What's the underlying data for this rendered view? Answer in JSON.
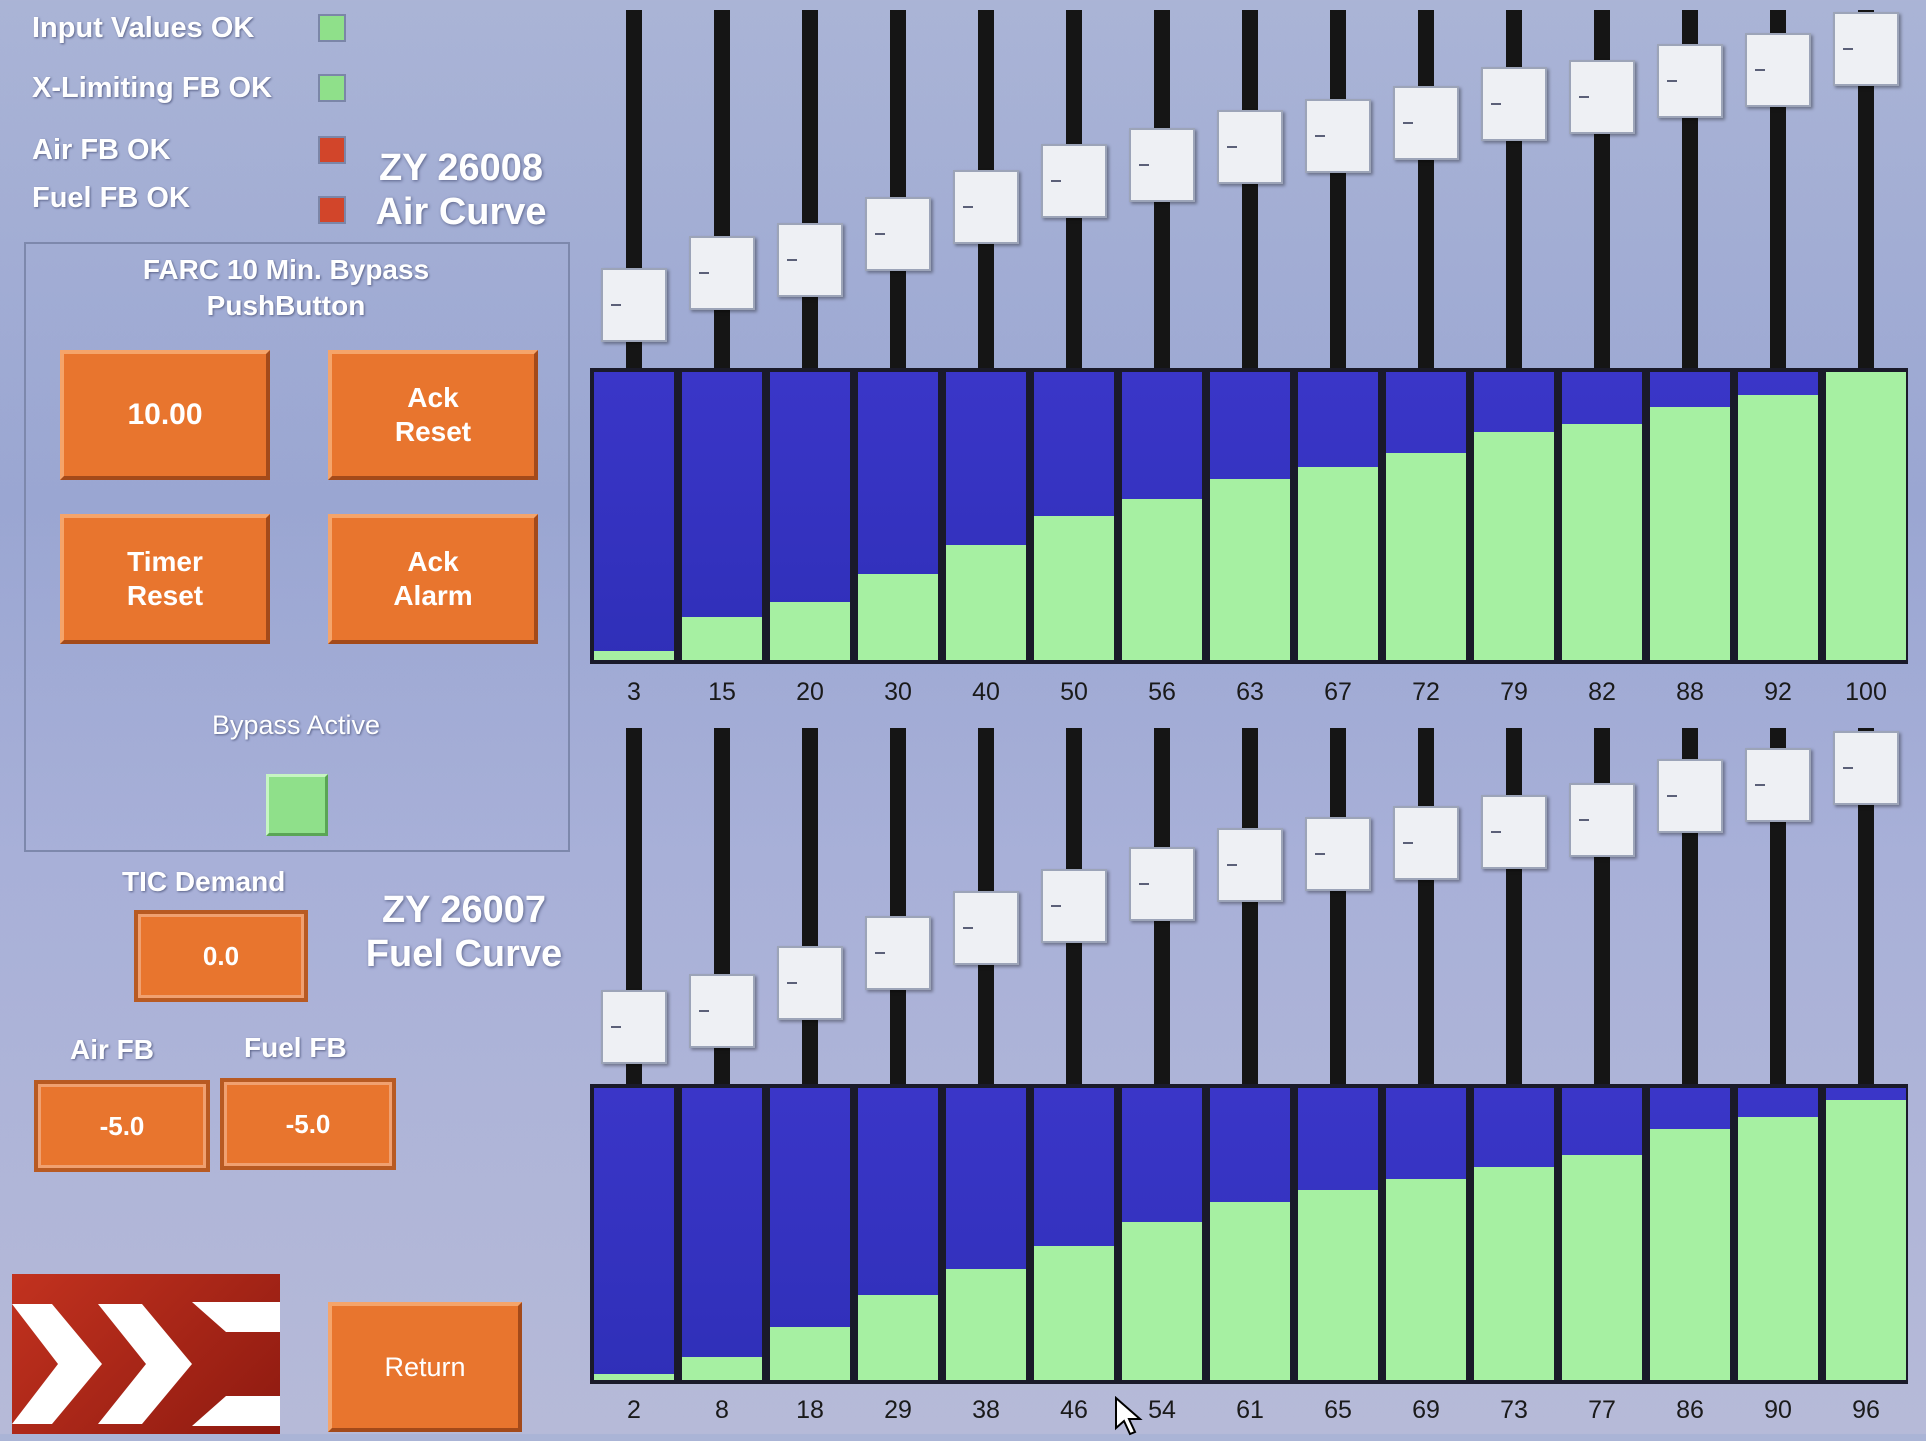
{
  "status": {
    "items": [
      {
        "label": "Input Values OK",
        "state": "ok"
      },
      {
        "label": "X-Limiting FB OK",
        "state": "ok"
      },
      {
        "label": "Air FB OK",
        "state": "fault"
      },
      {
        "label": "Fuel FB OK",
        "state": "fault"
      }
    ]
  },
  "air_curve": {
    "tag": "ZY 26008",
    "name": "Air Curve",
    "values": [
      3,
      15,
      20,
      30,
      40,
      50,
      56,
      63,
      67,
      72,
      79,
      82,
      88,
      92,
      100
    ],
    "labels": [
      "3",
      "15",
      "20",
      "30",
      "40",
      "50",
      "56",
      "63",
      "67",
      "72",
      "79",
      "82",
      "88",
      "92",
      "100"
    ]
  },
  "fuel_curve": {
    "tag": "ZY 26007",
    "name": "Fuel Curve",
    "values": [
      2,
      8,
      18,
      29,
      38,
      46,
      54,
      61,
      65,
      69,
      73,
      77,
      86,
      90,
      96
    ],
    "labels": [
      "2",
      "8",
      "18",
      "29",
      "38",
      "46",
      "54",
      "61",
      "65",
      "69",
      "73",
      "77",
      "86",
      "90",
      "96"
    ]
  },
  "bypass": {
    "title": "FARC 10 Min. Bypass\nPushButton",
    "timer_value": "10.00",
    "ack_reset_label": "Ack\nReset",
    "timer_reset_label": "Timer\nReset",
    "ack_alarm_label": "Ack\nAlarm",
    "active_label": "Bypass Active",
    "active_color": "#8fe08a"
  },
  "tic_demand": {
    "label": "TIC Demand",
    "value": "0.0"
  },
  "air_fb": {
    "label": "Air FB",
    "value": "-5.0"
  },
  "fuel_fb": {
    "label": "Fuel FB",
    "value": "-5.0"
  },
  "return_label": "Return",
  "colors": {
    "ok": "#8fe08a",
    "fault": "#d2452a",
    "button": "#e8752e",
    "bar_empty": "#3030c0",
    "bar_fill": "#a6f0a2"
  },
  "icons": {
    "logo": "double-chevron-logo-icon",
    "cursor": "mouse-pointer-icon"
  }
}
